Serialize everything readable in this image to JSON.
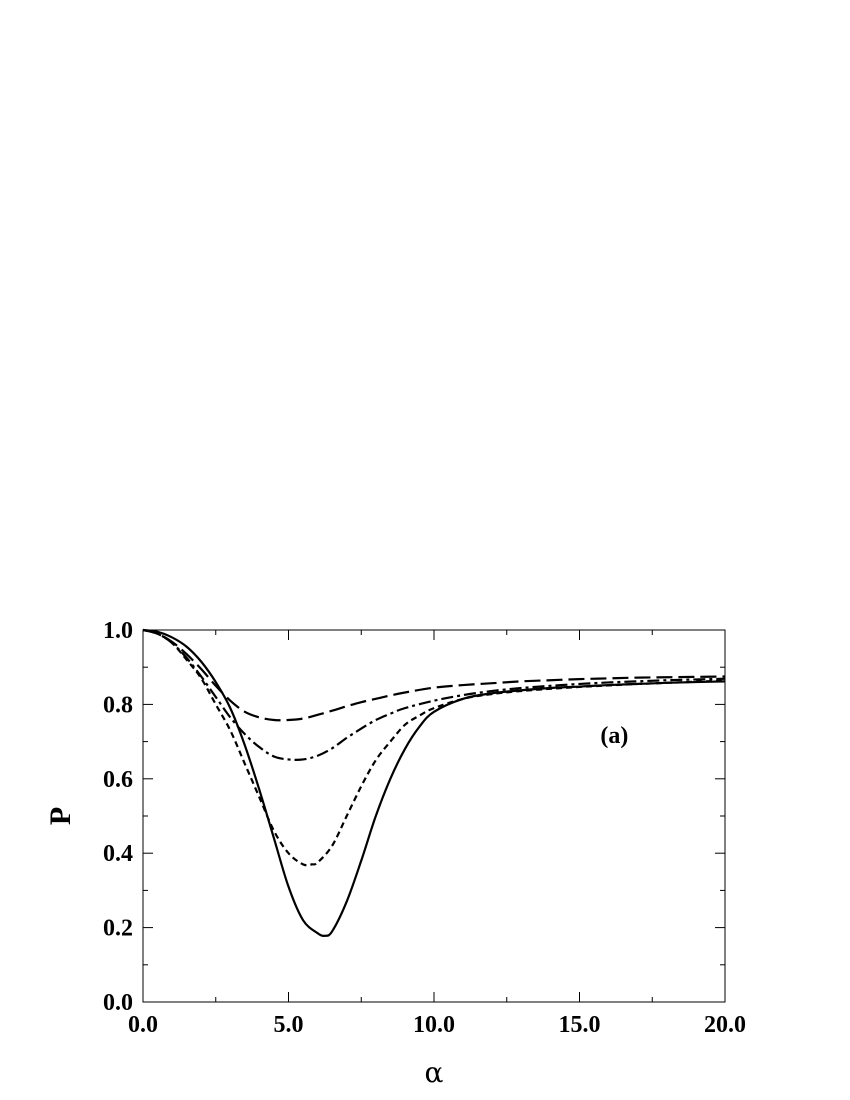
{
  "chart_data": {
    "type": "line",
    "title": "",
    "xlabel": "α",
    "ylabel": "P",
    "xlim": [
      0,
      20
    ],
    "ylim": [
      0,
      1
    ],
    "x_ticks": [
      0,
      5,
      10,
      15,
      20
    ],
    "x_tick_labels": [
      "0.0",
      "5.0",
      "10.0",
      "15.0",
      "20.0"
    ],
    "y_ticks": [
      0,
      0.2,
      0.4,
      0.6,
      0.8,
      1.0
    ],
    "y_tick_labels": [
      "0.0",
      "0.2",
      "0.4",
      "0.6",
      "0.8",
      "1.0"
    ],
    "grid": false,
    "legend": "none",
    "annotation": "(a)",
    "series": [
      {
        "style": "solid",
        "x": [
          0,
          0.5,
          1,
          1.5,
          2,
          2.5,
          3,
          3.5,
          4,
          4.5,
          5,
          5.5,
          6,
          6.25,
          6.5,
          7,
          7.5,
          8,
          8.5,
          9,
          9.5,
          10,
          11,
          12,
          13,
          14,
          15,
          16,
          17,
          18,
          19,
          20
        ],
        "y": [
          1.0,
          0.995,
          0.98,
          0.955,
          0.915,
          0.86,
          0.79,
          0.69,
          0.57,
          0.44,
          0.31,
          0.22,
          0.185,
          0.178,
          0.19,
          0.27,
          0.38,
          0.5,
          0.6,
          0.68,
          0.74,
          0.78,
          0.815,
          0.83,
          0.838,
          0.844,
          0.848,
          0.852,
          0.855,
          0.858,
          0.86,
          0.862
        ]
      },
      {
        "style": "dashed-short",
        "x": [
          0,
          0.5,
          1,
          1.5,
          2,
          2.5,
          3,
          3.5,
          4,
          4.5,
          5,
          5.5,
          5.8,
          6,
          6.5,
          7,
          7.5,
          8,
          8.5,
          9,
          9.5,
          10,
          11,
          12,
          13,
          14,
          15,
          16,
          17,
          18,
          19,
          20
        ],
        "y": [
          1.0,
          0.99,
          0.965,
          0.92,
          0.87,
          0.8,
          0.73,
          0.64,
          0.55,
          0.46,
          0.4,
          0.37,
          0.37,
          0.375,
          0.42,
          0.5,
          0.58,
          0.65,
          0.7,
          0.745,
          0.77,
          0.79,
          0.815,
          0.828,
          0.836,
          0.842,
          0.847,
          0.851,
          0.855,
          0.858,
          0.861,
          0.864
        ]
      },
      {
        "style": "dash-dot",
        "x": [
          0,
          0.5,
          1,
          1.5,
          2,
          2.5,
          3,
          3.5,
          4,
          4.5,
          5,
          5.5,
          6,
          6.5,
          7,
          7.5,
          8,
          8.5,
          9,
          10,
          11,
          12,
          13,
          14,
          15,
          16,
          17,
          18,
          19,
          20
        ],
        "y": [
          1.0,
          0.99,
          0.965,
          0.925,
          0.875,
          0.82,
          0.765,
          0.72,
          0.685,
          0.66,
          0.652,
          0.652,
          0.662,
          0.682,
          0.71,
          0.735,
          0.758,
          0.775,
          0.79,
          0.81,
          0.825,
          0.836,
          0.844,
          0.85,
          0.855,
          0.859,
          0.862,
          0.865,
          0.867,
          0.869
        ]
      },
      {
        "style": "dashed-long",
        "x": [
          0,
          0.5,
          1,
          1.5,
          2,
          2.5,
          3,
          3.5,
          4,
          4.5,
          5,
          5.5,
          6,
          6.5,
          7,
          7.5,
          8,
          8.5,
          9,
          10,
          11,
          12,
          13,
          14,
          15,
          16,
          17,
          18,
          19,
          20
        ],
        "y": [
          1.0,
          0.99,
          0.968,
          0.935,
          0.895,
          0.85,
          0.81,
          0.78,
          0.765,
          0.758,
          0.758,
          0.762,
          0.772,
          0.783,
          0.795,
          0.806,
          0.815,
          0.824,
          0.832,
          0.845,
          0.852,
          0.857,
          0.862,
          0.865,
          0.868,
          0.87,
          0.872,
          0.873,
          0.874,
          0.875
        ]
      }
    ]
  }
}
